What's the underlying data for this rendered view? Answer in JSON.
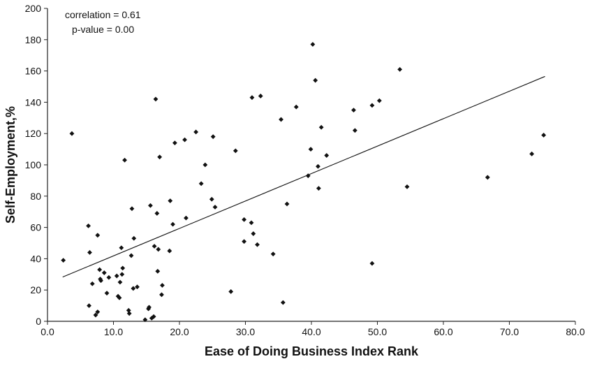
{
  "chart_data": {
    "type": "scatter",
    "title": "",
    "xlabel": "Ease of Doing Business Index Rank",
    "ylabel": "Self-Employment,%",
    "xlim": [
      0,
      80
    ],
    "ylim": [
      0,
      200
    ],
    "x_ticks": [
      "0.0",
      "10.0",
      "20.0",
      "30.0",
      "40.0",
      "50.0",
      "60.0",
      "70.0",
      "80.0"
    ],
    "y_ticks": [
      "0",
      "20",
      "40",
      "60",
      "80",
      "100",
      "120",
      "140",
      "160",
      "180",
      "200"
    ],
    "grid": false,
    "legend": "none",
    "annotations": [
      "correlation = 0.61",
      "p-value = 0.00"
    ],
    "marker": "diamond",
    "marker_color": "#111111",
    "trendline": {
      "x": [
        2.3,
        75.4
      ],
      "y": [
        28.3,
        156.5
      ]
    },
    "points": [
      {
        "x": 2.4,
        "y": 39
      },
      {
        "x": 3.7,
        "y": 120
      },
      {
        "x": 6.2,
        "y": 61
      },
      {
        "x": 6.4,
        "y": 44
      },
      {
        "x": 6.3,
        "y": 10
      },
      {
        "x": 6.8,
        "y": 24
      },
      {
        "x": 7.3,
        "y": 4
      },
      {
        "x": 7.6,
        "y": 55
      },
      {
        "x": 7.6,
        "y": 6
      },
      {
        "x": 7.9,
        "y": 33
      },
      {
        "x": 8.0,
        "y": 27
      },
      {
        "x": 8.1,
        "y": 26
      },
      {
        "x": 8.6,
        "y": 31
      },
      {
        "x": 9.0,
        "y": 18
      },
      {
        "x": 9.3,
        "y": 28
      },
      {
        "x": 10.5,
        "y": 29
      },
      {
        "x": 10.7,
        "y": 16
      },
      {
        "x": 10.9,
        "y": 15
      },
      {
        "x": 11.0,
        "y": 25
      },
      {
        "x": 11.2,
        "y": 47
      },
      {
        "x": 11.3,
        "y": 30
      },
      {
        "x": 11.4,
        "y": 34
      },
      {
        "x": 11.7,
        "y": 103
      },
      {
        "x": 12.3,
        "y": 7
      },
      {
        "x": 12.4,
        "y": 5
      },
      {
        "x": 12.7,
        "y": 42
      },
      {
        "x": 12.8,
        "y": 72
      },
      {
        "x": 13.0,
        "y": 21
      },
      {
        "x": 13.1,
        "y": 53
      },
      {
        "x": 13.6,
        "y": 22
      },
      {
        "x": 14.8,
        "y": 1
      },
      {
        "x": 15.3,
        "y": 8
      },
      {
        "x": 15.4,
        "y": 9
      },
      {
        "x": 15.6,
        "y": 74
      },
      {
        "x": 15.8,
        "y": 2
      },
      {
        "x": 16.1,
        "y": 3
      },
      {
        "x": 16.2,
        "y": 48
      },
      {
        "x": 16.4,
        "y": 142
      },
      {
        "x": 16.6,
        "y": 69
      },
      {
        "x": 16.7,
        "y": 32
      },
      {
        "x": 16.8,
        "y": 46
      },
      {
        "x": 17.0,
        "y": 105
      },
      {
        "x": 17.3,
        "y": 17
      },
      {
        "x": 17.4,
        "y": 23
      },
      {
        "x": 18.5,
        "y": 45
      },
      {
        "x": 18.6,
        "y": 77
      },
      {
        "x": 19.0,
        "y": 62
      },
      {
        "x": 19.3,
        "y": 114
      },
      {
        "x": 20.8,
        "y": 116
      },
      {
        "x": 21.0,
        "y": 66
      },
      {
        "x": 22.5,
        "y": 121
      },
      {
        "x": 23.3,
        "y": 88
      },
      {
        "x": 23.9,
        "y": 100
      },
      {
        "x": 24.9,
        "y": 78
      },
      {
        "x": 25.1,
        "y": 118
      },
      {
        "x": 25.4,
        "y": 73
      },
      {
        "x": 27.8,
        "y": 19
      },
      {
        "x": 28.5,
        "y": 109
      },
      {
        "x": 29.8,
        "y": 65
      },
      {
        "x": 29.8,
        "y": 51
      },
      {
        "x": 30.9,
        "y": 63
      },
      {
        "x": 31.0,
        "y": 143
      },
      {
        "x": 31.2,
        "y": 56
      },
      {
        "x": 31.8,
        "y": 49
      },
      {
        "x": 32.3,
        "y": 144
      },
      {
        "x": 34.2,
        "y": 43
      },
      {
        "x": 35.4,
        "y": 129
      },
      {
        "x": 35.7,
        "y": 12
      },
      {
        "x": 36.3,
        "y": 75
      },
      {
        "x": 37.7,
        "y": 137
      },
      {
        "x": 39.5,
        "y": 93
      },
      {
        "x": 39.9,
        "y": 110
      },
      {
        "x": 40.2,
        "y": 177
      },
      {
        "x": 40.6,
        "y": 154
      },
      {
        "x": 41.0,
        "y": 99
      },
      {
        "x": 41.1,
        "y": 85
      },
      {
        "x": 41.5,
        "y": 124
      },
      {
        "x": 42.3,
        "y": 106
      },
      {
        "x": 46.4,
        "y": 135
      },
      {
        "x": 46.6,
        "y": 122
      },
      {
        "x": 49.2,
        "y": 138
      },
      {
        "x": 49.2,
        "y": 37
      },
      {
        "x": 50.3,
        "y": 141
      },
      {
        "x": 53.4,
        "y": 161
      },
      {
        "x": 54.5,
        "y": 86
      },
      {
        "x": 66.7,
        "y": 92
      },
      {
        "x": 73.4,
        "y": 107
      },
      {
        "x": 75.2,
        "y": 119
      }
    ]
  }
}
